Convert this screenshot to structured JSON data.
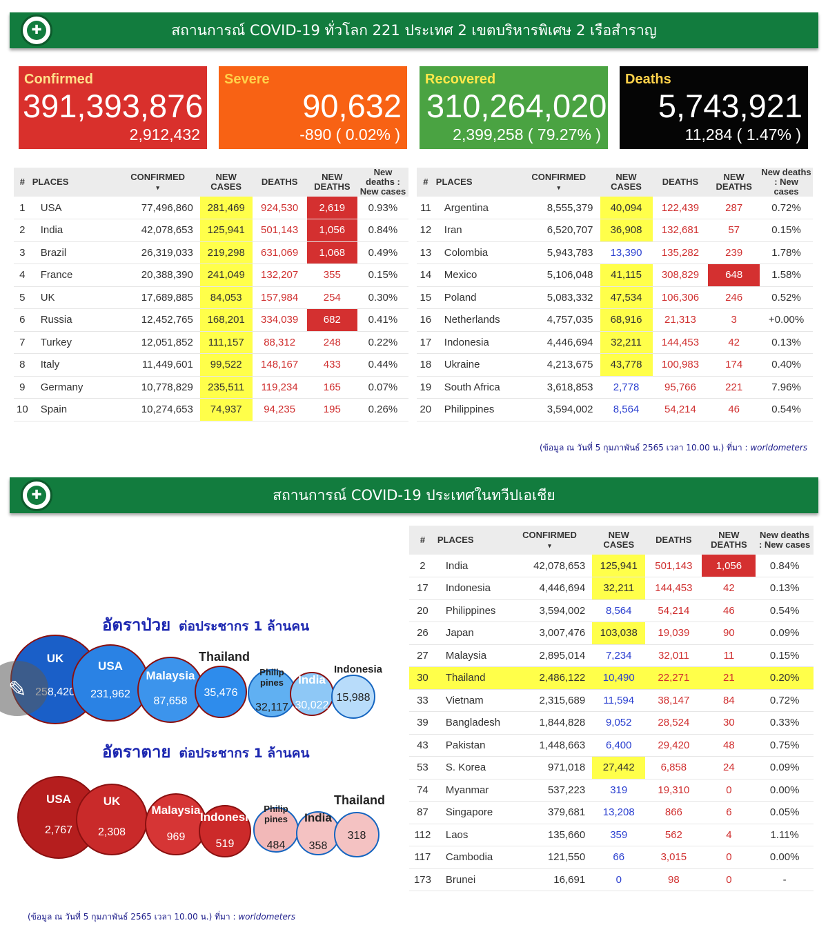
{
  "banner1": {
    "title": "สถานการณ์ COVID-19 ทั่วโลก 221 ประเทศ 2 เขตบริหารพิเศษ 2 เรือสำราญ"
  },
  "banner2": {
    "title": "สถานการณ์ COVID-19  ประเทศในทวีปเอเชีย"
  },
  "cards": {
    "confirmed": {
      "label": "Confirmed",
      "value": "391,393,876",
      "sub": "2,912,432",
      "color": "#d9302c"
    },
    "severe": {
      "label": "Severe",
      "value": "90,632",
      "sub": "-890 ( 0.02% )",
      "color": "#f86214"
    },
    "recovered": {
      "label": "Recovered",
      "value": "310,264,020",
      "sub": "2,399,258 ( 79.27% )",
      "color": "#4aa342"
    },
    "deaths": {
      "label": "Deaths",
      "value": "5,743,921",
      "sub": "11,284 ( 1.47% )",
      "color": "#050505"
    }
  },
  "table_headers": {
    "num": "#",
    "places": "PLACES",
    "confirmed": "CONFIRMED",
    "sort": "▾",
    "new_cases": "NEW CASES",
    "deaths": "DEATHS",
    "new_deaths": "NEW DEATHS",
    "ratio": "New deaths : New cases"
  },
  "world_left": [
    [
      "1",
      "USA",
      "77,496,860",
      "281,469",
      "924,530",
      "2,619",
      "0.93%"
    ],
    [
      "2",
      "India",
      "42,078,653",
      "125,941",
      "501,143",
      "1,056",
      "0.84%"
    ],
    [
      "3",
      "Brazil",
      "26,319,033",
      "219,298",
      "631,069",
      "1,068",
      "0.49%"
    ],
    [
      "4",
      "France",
      "20,388,390",
      "241,049",
      "132,207",
      "355",
      "0.15%"
    ],
    [
      "5",
      "UK",
      "17,689,885",
      "84,053",
      "157,984",
      "254",
      "0.30%"
    ],
    [
      "6",
      "Russia",
      "12,452,765",
      "168,201",
      "334,039",
      "682",
      "0.41%"
    ],
    [
      "7",
      "Turkey",
      "12,051,852",
      "111,157",
      "88,312",
      "248",
      "0.22%"
    ],
    [
      "8",
      "Italy",
      "11,449,601",
      "99,522",
      "148,167",
      "433",
      "0.44%"
    ],
    [
      "9",
      "Germany",
      "10,778,829",
      "235,511",
      "119,234",
      "165",
      "0.07%"
    ],
    [
      "10",
      "Spain",
      "10,274,653",
      "74,937",
      "94,235",
      "195",
      "0.26%"
    ]
  ],
  "world_right": [
    [
      "11",
      "Argentina",
      "8,555,379",
      "40,094",
      "122,439",
      "287",
      "0.72%"
    ],
    [
      "12",
      "Iran",
      "6,520,707",
      "36,908",
      "132,681",
      "57",
      "0.15%"
    ],
    [
      "13",
      "Colombia",
      "5,943,783",
      "13,390",
      "135,282",
      "239",
      "1.78%"
    ],
    [
      "14",
      "Mexico",
      "5,106,048",
      "41,115",
      "308,829",
      "648",
      "1.58%"
    ],
    [
      "15",
      "Poland",
      "5,083,332",
      "47,534",
      "106,306",
      "246",
      "0.52%"
    ],
    [
      "16",
      "Netherlands",
      "4,757,035",
      "68,916",
      "21,313",
      "3",
      "+0.00%"
    ],
    [
      "17",
      "Indonesia",
      "4,446,694",
      "32,211",
      "144,453",
      "42",
      "0.13%"
    ],
    [
      "18",
      "Ukraine",
      "4,213,675",
      "43,778",
      "100,983",
      "174",
      "0.40%"
    ],
    [
      "19",
      "South Africa",
      "3,618,853",
      "2,778",
      "95,766",
      "221",
      "7.96%"
    ],
    [
      "20",
      "Philippines",
      "3,594,002",
      "8,564",
      "54,214",
      "46",
      "0.54%"
    ]
  ],
  "world_left_yellow": [
    0,
    1,
    2,
    3,
    4,
    5,
    6,
    7,
    8,
    9
  ],
  "world_left_reddeaths": [
    0,
    1,
    2,
    5
  ],
  "world_right_yellow": [
    0,
    1,
    3,
    4,
    5,
    6,
    7
  ],
  "world_right_reddeaths": [
    3
  ],
  "asia_rows": [
    [
      "2",
      "India",
      "42,078,653",
      "125,941",
      "501,143",
      "1,056",
      "0.84%"
    ],
    [
      "17",
      "Indonesia",
      "4,446,694",
      "32,211",
      "144,453",
      "42",
      "0.13%"
    ],
    [
      "20",
      "Philippines",
      "3,594,002",
      "8,564",
      "54,214",
      "46",
      "0.54%"
    ],
    [
      "26",
      "Japan",
      "3,007,476",
      "103,038",
      "19,039",
      "90",
      "0.09%"
    ],
    [
      "27",
      "Malaysia",
      "2,895,014",
      "7,234",
      "32,011",
      "11",
      "0.15%"
    ],
    [
      "30",
      "Thailand",
      "2,486,122",
      "10,490",
      "22,271",
      "21",
      "0.20%"
    ],
    [
      "33",
      "Vietnam",
      "2,315,689",
      "11,594",
      "38,147",
      "84",
      "0.72%"
    ],
    [
      "39",
      "Bangladesh",
      "1,844,828",
      "9,052",
      "28,524",
      "30",
      "0.33%"
    ],
    [
      "43",
      "Pakistan",
      "1,448,663",
      "6,400",
      "29,420",
      "48",
      "0.75%"
    ],
    [
      "53",
      "S. Korea",
      "971,018",
      "27,442",
      "6,858",
      "24",
      "0.09%"
    ],
    [
      "74",
      "Myanmar",
      "537,223",
      "319",
      "19,310",
      "0",
      "0.00%"
    ],
    [
      "87",
      "Singapore",
      "379,681",
      "13,208",
      "866",
      "6",
      "0.05%"
    ],
    [
      "112",
      "Laos",
      "135,660",
      "359",
      "562",
      "4",
      "1.11%"
    ],
    [
      "117",
      "Cambodia",
      "121,550",
      "66",
      "3,015",
      "0",
      "0.00%"
    ],
    [
      "173",
      "Brunei",
      "16,691",
      "0",
      "98",
      "0",
      "-"
    ]
  ],
  "asia_yellow": [
    0,
    1,
    3,
    9
  ],
  "asia_reddeaths": [
    0
  ],
  "asia_highlight_row": 5,
  "source": {
    "prefix": "(ข้อมูล ณ วันที่ 5 กุมภาพันธ์ 2565 เวลา 10.00 น.) ที่มา :",
    "site": "worldometers"
  },
  "infection": {
    "title": "อัตราป่วย",
    "subtitle": "ต่อประชากร 1 ล้านคน"
  },
  "death": {
    "title": "อัตราตาย",
    "subtitle": "ต่อประชากร 1 ล้านคน"
  },
  "chart_data": [
    {
      "type": "bubble",
      "title": "อัตราป่วย ต่อประชากร 1 ล้านคน",
      "categories": [
        "UK",
        "USA",
        "Malaysia",
        "Thailand",
        "Philip pines",
        "India",
        "Indonesia"
      ],
      "values": [
        258420,
        231962,
        87658,
        35476,
        32117,
        30022,
        15988
      ],
      "labels": [
        "258,420",
        "231,962",
        "87,658",
        "35,476",
        "32,117",
        "30,022",
        "15,988"
      ],
      "colors": [
        "#1a5fc8",
        "#2a82e4",
        "#3c94ec",
        "#2e8cec",
        "#60b0f2",
        "#8ec8f6",
        "#b8dcfa"
      ]
    },
    {
      "type": "bubble",
      "title": "อัตราตาย ต่อประชากร 1 ล้านคน",
      "categories": [
        "USA",
        "UK",
        "Malaysia",
        "Indonesia",
        "Philip pines",
        "India",
        "Thailand"
      ],
      "values": [
        2767,
        2308,
        969,
        519,
        484,
        358,
        318
      ],
      "labels": [
        "2,767",
        "2,308",
        "969",
        "519",
        "484",
        "358",
        "318"
      ],
      "colors": [
        "#b51e1e",
        "#c92a2a",
        "#d63535",
        "#cc2a2a",
        "#f2b8b8",
        "#f4c2c2",
        "#f4c2c2"
      ]
    }
  ]
}
